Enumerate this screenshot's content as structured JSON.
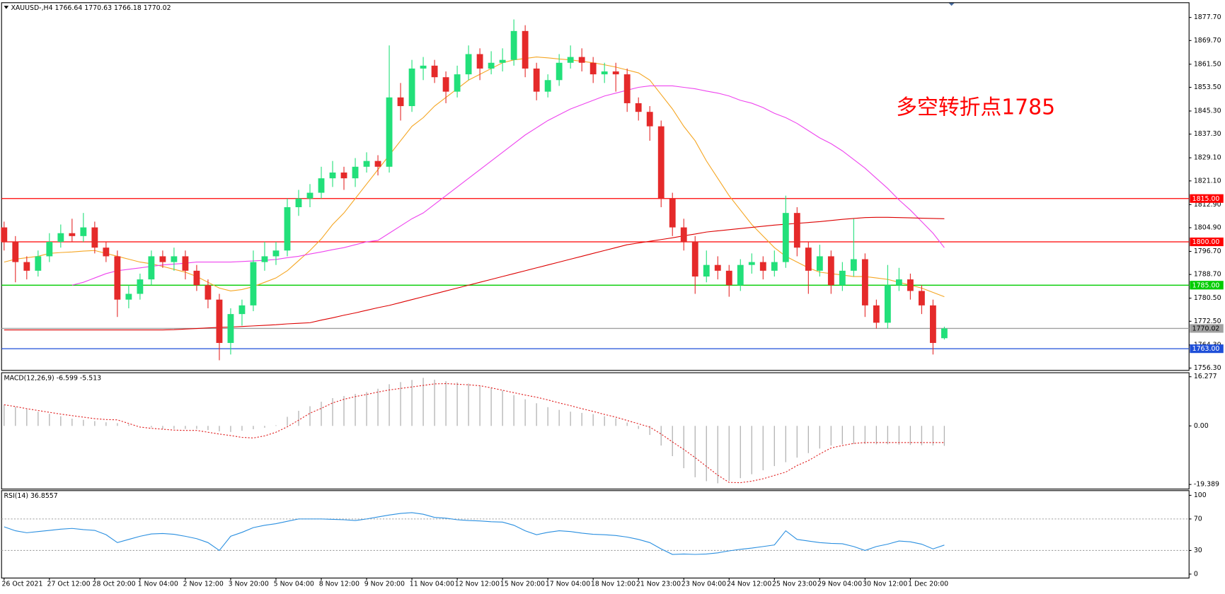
{
  "chart_data": [
    {
      "type": "candlestick",
      "title": "XAUUSD-,H4 1766.64 1770.63 1766.18 1770.02",
      "annotation": {
        "text": "多空转折点1785",
        "color": "#ff0000"
      },
      "up_color": "#22e07a",
      "down_color": "#e52a2a",
      "categories": [
        "26 Oct 2021",
        null,
        null,
        null,
        "27 Oct 12:00",
        null,
        null,
        null,
        "28 Oct 20:00",
        null,
        null,
        null,
        "1 Nov 04:00",
        null,
        null,
        null,
        "2 Nov 12:00",
        null,
        null,
        null,
        "3 Nov 20:00",
        null,
        null,
        null,
        "5 Nov 04:00",
        null,
        null,
        null,
        "8 Nov 12:00",
        null,
        null,
        null,
        "9 Nov 20:00",
        null,
        null,
        null,
        "11 Nov 04:00",
        null,
        null,
        null,
        "12 Nov 12:00",
        null,
        null,
        null,
        "15 Nov 20:00",
        null,
        null,
        null,
        "17 Nov 04:00",
        null,
        null,
        null,
        "18 Nov 12:00",
        null,
        null,
        null,
        "21 Nov 23:00",
        null,
        null,
        null,
        "23 Nov 04:00",
        null,
        null,
        null,
        "24 Nov 12:00",
        null,
        null,
        null,
        "25 Nov 23:00",
        null,
        null,
        null,
        "29 Nov 04:00",
        null,
        null,
        null,
        "30 Nov 12:00",
        null,
        null,
        null,
        "1 Dec 20:00",
        null,
        null,
        null
      ],
      "open": [
        1805,
        1800,
        1793,
        1790,
        1795,
        1800,
        1803,
        1802,
        1805,
        1798,
        1795,
        1780,
        1782,
        1787,
        1795,
        1793,
        1795,
        1790,
        1785,
        1780,
        1765,
        1775,
        1778,
        1793,
        1795,
        1797,
        1812,
        1815,
        1817,
        1822,
        1824,
        1822,
        1826,
        1828,
        1826,
        1850,
        1847,
        1860,
        1861,
        1857,
        1852,
        1858,
        1865,
        1860,
        1862,
        1863,
        1873,
        1860,
        1852,
        1856,
        1862,
        1864,
        1862,
        1858,
        1859,
        1858,
        1848,
        1845,
        1840,
        1815,
        1805,
        1800,
        1788,
        1792,
        1790,
        1785,
        1792,
        1793,
        1790,
        1793,
        1810,
        1798,
        1790,
        1795,
        1785,
        1790,
        1794,
        1778,
        1772,
        1785,
        1787,
        1783,
        1778,
        1766.64
      ],
      "high": [
        1807,
        1802,
        1795,
        1797,
        1803,
        1806,
        1808,
        1810,
        1807,
        1800,
        1797,
        1785,
        1789,
        1797,
        1797,
        1798,
        1797,
        1792,
        1787,
        1782,
        1777,
        1780,
        1797,
        1800,
        1800,
        1815,
        1818,
        1820,
        1826,
        1828,
        1826,
        1829,
        1831,
        1830,
        1868,
        1855,
        1863,
        1864,
        1863,
        1859,
        1861,
        1868,
        1867,
        1866,
        1867,
        1877,
        1875,
        1862,
        1858,
        1865,
        1868,
        1867,
        1864,
        1862,
        1862,
        1860,
        1850,
        1847,
        1842,
        1817,
        1808,
        1802,
        1797,
        1795,
        1792,
        1794,
        1796,
        1795,
        1797,
        1816,
        1812,
        1800,
        1799,
        1797,
        1793,
        1808,
        1796,
        1780,
        1792,
        1791,
        1789,
        1785,
        1780,
        1770.63
      ],
      "low": [
        1797,
        1786,
        1787,
        1788,
        1793,
        1798,
        1800,
        1800,
        1796,
        1793,
        1774,
        1777,
        1780,
        1785,
        1791,
        1790,
        1787,
        1783,
        1777,
        1759,
        1761,
        1771,
        1776,
        1790,
        1792,
        1795,
        1809,
        1812,
        1815,
        1819,
        1818,
        1819,
        1824,
        1823,
        1824,
        1842,
        1845,
        1856,
        1855,
        1848,
        1850,
        1856,
        1856,
        1858,
        1859,
        1861,
        1857,
        1849,
        1850,
        1854,
        1860,
        1859,
        1855,
        1855,
        1852,
        1845,
        1842,
        1835,
        1812,
        1802,
        1797,
        1782,
        1786,
        1787,
        1781,
        1783,
        1789,
        1787,
        1788,
        1791,
        1795,
        1782,
        1788,
        1782,
        1783,
        1788,
        1774,
        1770,
        1770,
        1783,
        1780,
        1775,
        1761,
        1766.18
      ],
      "close": [
        1800,
        1793,
        1790,
        1795,
        1800,
        1803,
        1802,
        1805,
        1798,
        1795,
        1780,
        1782,
        1787,
        1795,
        1793,
        1795,
        1790,
        1785,
        1780,
        1765,
        1775,
        1778,
        1793,
        1795,
        1797,
        1812,
        1815,
        1817,
        1822,
        1824,
        1822,
        1826,
        1828,
        1826,
        1850,
        1847,
        1860,
        1861,
        1857,
        1852,
        1858,
        1865,
        1860,
        1862,
        1863,
        1873,
        1860,
        1852,
        1856,
        1862,
        1864,
        1862,
        1858,
        1859,
        1858,
        1848,
        1845,
        1840,
        1815,
        1805,
        1800,
        1788,
        1792,
        1790,
        1785,
        1792,
        1793,
        1790,
        1793,
        1810,
        1798,
        1790,
        1795,
        1785,
        1790,
        1794,
        1778,
        1772,
        1785,
        1787,
        1783,
        1778,
        1765,
        1770.02
      ],
      "series": [
        {
          "color": "#f5a623",
          "values": [
            1793,
            1794,
            1794.5,
            1795,
            1796,
            1796.3,
            1796.5,
            1796.8,
            1797,
            1796,
            1795,
            1794,
            1793,
            1792.4,
            1791.5,
            1790.5,
            1789.5,
            1788,
            1786,
            1784,
            1783,
            1783.5,
            1784.5,
            1786,
            1787.5,
            1790,
            1793.5,
            1797,
            1801,
            1806,
            1810,
            1815,
            1820,
            1825,
            1830,
            1835,
            1840,
            1843,
            1847,
            1850,
            1853,
            1856,
            1858,
            1860,
            1862,
            1863,
            1863.5,
            1864,
            1863.7,
            1863.3,
            1863,
            1862.5,
            1862,
            1861.3,
            1860.5,
            1859.5,
            1858.5,
            1856,
            1851,
            1846,
            1840,
            1835,
            1828,
            1822,
            1816,
            1811,
            1806,
            1802,
            1798,
            1795,
            1793,
            1791,
            1789.5,
            1789,
            1788.5,
            1788,
            1788,
            1787.5,
            1787,
            1786,
            1785,
            1784,
            1782.5,
            1781
          ]
        },
        {
          "color": "#ee44ee",
          "values": [
            null,
            null,
            null,
            null,
            null,
            null,
            1785,
            1786,
            1787.5,
            1789,
            1790,
            1790.5,
            1791,
            1791.5,
            1792,
            1792.3,
            1792.6,
            1793,
            1793,
            1793,
            1793,
            1793.2,
            1793.4,
            1793.6,
            1793.9,
            1794.5,
            1795,
            1795.8,
            1796.5,
            1797.3,
            1798,
            1799,
            1800,
            1800.5,
            1803,
            1805.5,
            1808,
            1810,
            1813,
            1816,
            1819,
            1822,
            1825,
            1828,
            1831,
            1834,
            1837,
            1839.5,
            1842,
            1844,
            1846,
            1847.5,
            1849,
            1850.5,
            1851.5,
            1852.5,
            1853.5,
            1854,
            1854,
            1854,
            1853.5,
            1853,
            1852.2,
            1851.5,
            1850.5,
            1849,
            1848,
            1846.5,
            1844.5,
            1843,
            1841,
            1838.5,
            1836,
            1834,
            1831.5,
            1828.5,
            1825.5,
            1822,
            1818.5,
            1814.5,
            1811,
            1807,
            1803,
            1798
          ]
        },
        {
          "color": "#dd0000",
          "values": [
            1769.5,
            1769.5,
            1769.5,
            1769.5,
            1769.5,
            1769.5,
            1769.5,
            1769.5,
            1769.5,
            1769.5,
            1769.5,
            1769.5,
            1769.5,
            1769.5,
            1769.5,
            1769.6,
            1769.8,
            1770,
            1770.2,
            1770.4,
            1770.5,
            1770.7,
            1770.9,
            1771.1,
            1771.3,
            1771.6,
            1771.8,
            1772,
            1772.9,
            1773.7,
            1774.6,
            1775.4,
            1776.3,
            1777.2,
            1778,
            1779,
            1780,
            1781,
            1782,
            1783,
            1784,
            1785,
            1786,
            1787,
            1788,
            1789,
            1790,
            1791,
            1792,
            1793,
            1794,
            1795,
            1796,
            1797,
            1798,
            1799,
            1799.6,
            1800.2,
            1800.8,
            1801.4,
            1802.1,
            1802.7,
            1803.4,
            1803.8,
            1804.2,
            1804.6,
            1805,
            1805.4,
            1805.8,
            1806.1,
            1806.4,
            1806.7,
            1807,
            1807.4,
            1807.8,
            1808.1,
            1808.4,
            1808.5,
            1808.5,
            1808.4,
            1808.3,
            1808.2,
            1808.1,
            1808
          ]
        }
      ],
      "levels": [
        {
          "value": 1815,
          "label": "1815.00",
          "color": "#ff0000"
        },
        {
          "value": 1800,
          "label": "1800.00",
          "color": "#ff0000"
        },
        {
          "value": 1785,
          "label": "1785.00",
          "color": "#00cc00"
        },
        {
          "value": 1770.02,
          "label": "1770.02",
          "color": "#a0a0a0"
        },
        {
          "value": 1763,
          "label": "1763.00",
          "color": "#1f4fd8"
        }
      ],
      "ylim": [
        1755.5,
        1882.8
      ],
      "yticks": [
        {
          "value": 1877.7,
          "label": "1877.70"
        },
        {
          "value": 1869.7,
          "label": "1869.70"
        },
        {
          "value": 1861.5,
          "label": "1861.50"
        },
        {
          "value": 1853.5,
          "label": "1853.50"
        },
        {
          "value": 1845.3,
          "label": "1845.30"
        },
        {
          "value": 1837.3,
          "label": "1837.30"
        },
        {
          "value": 1829.1,
          "label": "1829.10"
        },
        {
          "value": 1821.1,
          "label": "1821.10"
        },
        {
          "value": 1812.9,
          "label": "1812.90"
        },
        {
          "value": 1804.9,
          "label": "1804.90"
        },
        {
          "value": 1796.7,
          "label": "1796.70"
        },
        {
          "value": 1788.7,
          "label": "1788.70"
        },
        {
          "value": 1780.5,
          "label": "1780.50"
        },
        {
          "value": 1772.5,
          "label": "1772.50"
        },
        {
          "value": 1764.3,
          "label": "1764.30"
        },
        {
          "value": 1756.3,
          "label": "1756.30"
        }
      ]
    },
    {
      "type": "macd",
      "title": "MACD(12,26,9) -6.599 -5.513",
      "histogram": {
        "color": "#b4b4b4",
        "values": [
          7,
          6.3,
          5.5,
          4.7,
          4,
          3.2,
          2.4,
          2,
          1.6,
          1.2,
          0.9,
          0.5,
          0,
          -0.5,
          -1,
          -1,
          -1,
          -1,
          -1.4,
          -1.8,
          -2,
          -1.6,
          -1.1,
          -0.6,
          0.2,
          3,
          5,
          6.5,
          8,
          9.2,
          9.9,
          10.6,
          11.2,
          12.3,
          13.8,
          14.5,
          15.2,
          15.9,
          15.3,
          14.8,
          14.4,
          14,
          13.3,
          12.5,
          11.7,
          10.2,
          8.8,
          7.5,
          6.2,
          5.3,
          4.7,
          4.3,
          3.9,
          3.2,
          2.5,
          1.1,
          -1,
          -3,
          -6.5,
          -10,
          -14,
          -17,
          -18.3,
          -19,
          -18.2,
          -17.3,
          -16,
          -14.7,
          -13.3,
          -12,
          -10.5,
          -9,
          -7.5,
          -6.5,
          -6.1,
          -6,
          -6,
          -6.1,
          -6.1,
          -6.2,
          -6.3,
          -6.4,
          -6.5,
          -6.599
        ]
      },
      "signal": {
        "color": "#e02020",
        "values": [
          7,
          6.4,
          5.7,
          5.1,
          4.5,
          3.9,
          3.4,
          2.9,
          2.4,
          2.1,
          2,
          0.8,
          -0.4,
          -0.8,
          -1.1,
          -1.4,
          -1.5,
          -1.5,
          -2.1,
          -2.7,
          -3.2,
          -3.8,
          -4,
          -3.3,
          -2.1,
          -0.3,
          1.9,
          4.2,
          5.8,
          7.6,
          8.8,
          9.7,
          10.4,
          11.2,
          11.9,
          12.4,
          12.9,
          13.4,
          13.9,
          14,
          13.8,
          13.6,
          13.3,
          12.6,
          11.8,
          11,
          10.2,
          9.5,
          8.6,
          7.6,
          6.7,
          5.7,
          4.8,
          3.8,
          2.9,
          1.8,
          0.7,
          -0.4,
          -2.7,
          -5.3,
          -7.8,
          -10.5,
          -13.4,
          -16.3,
          -18.7,
          -18.8,
          -18.3,
          -17.5,
          -16.4,
          -15.3,
          -13.1,
          -11.5,
          -9.3,
          -7.3,
          -6.5,
          -5.8,
          -5.5,
          -5.5,
          -5.5,
          -5.5,
          -5.5,
          -5.5,
          -5.51,
          -5.513
        ]
      },
      "ylim": [
        -20.9,
        17.6
      ],
      "yticks": [
        16.277,
        {
          "value": 0,
          "label": "0.00"
        },
        -19.389
      ]
    },
    {
      "type": "line",
      "title": "RSI(14) 36.8557",
      "color": "#2a8fe0",
      "values": [
        60,
        55,
        52.5,
        54,
        55.5,
        57,
        58,
        56.5,
        55.5,
        50,
        40,
        44,
        48,
        51,
        51.5,
        50.5,
        48,
        45,
        40,
        30,
        48,
        53,
        59,
        62,
        64,
        67,
        70,
        70,
        70,
        69.5,
        69,
        68,
        70,
        72.5,
        75,
        77,
        78,
        76,
        72,
        71,
        69,
        68,
        67.5,
        66.5,
        66,
        62,
        55,
        50,
        53,
        55,
        54,
        52,
        50.5,
        50,
        49,
        47,
        44,
        40,
        32,
        25,
        25.5,
        25,
        25.5,
        27,
        29.5,
        31.5,
        33,
        35,
        37,
        55,
        44,
        42,
        40,
        39,
        38.5,
        35,
        30,
        35,
        38,
        42,
        41,
        38,
        32,
        36.8557
      ],
      "levels": [
        70,
        30
      ],
      "ylim": [
        -5,
        106
      ],
      "yticks": [
        100,
        70,
        30,
        0
      ]
    }
  ]
}
